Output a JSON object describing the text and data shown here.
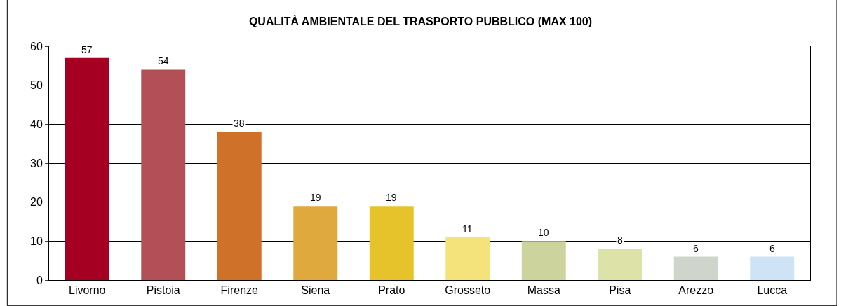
{
  "chart_data": {
    "type": "bar",
    "title": "QUALITÀ AMBIENTALE DEL TRASPORTO PUBBLICO (MAX 100)",
    "categories": [
      "Livorno",
      "Pistoia",
      "Firenze",
      "Siena",
      "Prato",
      "Grosseto",
      "Massa",
      "Pisa",
      "Arezzo",
      "Lucca"
    ],
    "values": [
      57,
      54,
      38,
      19,
      19,
      11,
      10,
      8,
      6,
      6
    ],
    "colors": [
      "#a50021",
      "#b35057",
      "#d0712a",
      "#e0a93e",
      "#e6c32a",
      "#f4e27a",
      "#cdd39c",
      "#dde3a8",
      "#d0d5cc",
      "#cfe3f6"
    ],
    "ylim": [
      0,
      60
    ],
    "yticks": [
      0,
      10,
      20,
      30,
      40,
      50,
      60
    ],
    "grid": "y",
    "data_labels": true,
    "legend": false
  }
}
